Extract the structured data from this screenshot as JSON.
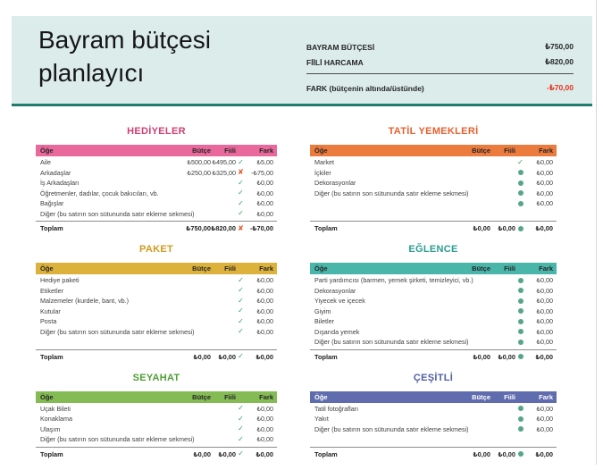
{
  "header": {
    "title_line1": "Bayram bütçesi",
    "title_line2": "planlayıcı",
    "summary": [
      {
        "label": "BAYRAM BÜTÇESİ",
        "value": "₺750,00",
        "color": "#262626"
      },
      {
        "label": "FİİLİ HARCAMA",
        "value": "₺820,00",
        "color": "#262626"
      },
      {
        "label": "FARK (bütçenin altında/üstünde)",
        "value": "-₺70,00",
        "color": "#e8301a"
      }
    ]
  },
  "columns": {
    "item": "Öğe",
    "budget": "Bütçe",
    "actual": "Fiili",
    "diff": "Fark"
  },
  "icons": {
    "check": "✓",
    "x": "✘",
    "dot": "●"
  },
  "colors": {
    "banner_bg": "#dbecea",
    "banner_border": "#1f7b6e",
    "check": "#2fa351",
    "x": "#e8542b",
    "dot": "#55a58b",
    "window_edge": "#d8d8d8"
  },
  "tables": [
    {
      "id": "hediyeler",
      "title": "HEDİYELER",
      "column": "left",
      "title_color": "#ce3f72",
      "bar_color": "#e9699c",
      "bar_text": "#262626",
      "rows": [
        {
          "label": "Aile",
          "budget": "₺500,00",
          "actual": "₺495,00",
          "icon": "check",
          "diff": "₺5,00"
        },
        {
          "label": "Arkadaşlar",
          "budget": "₺250,00",
          "actual": "₺325,00",
          "icon": "x",
          "diff": "-₺75,00"
        },
        {
          "label": "İş Arkadaşları",
          "budget": "",
          "actual": "",
          "icon": "check",
          "diff": "₺0,00"
        },
        {
          "label": "Öğretmenler, dadılar, çocuk bakıcıları, vb.",
          "budget": "",
          "actual": "",
          "icon": "check",
          "diff": "₺0,00"
        },
        {
          "label": "Bağışlar",
          "budget": "",
          "actual": "",
          "icon": "check",
          "diff": "₺0,00"
        },
        {
          "label": "Diğer (bu satırın son sütununda satır ekleme sekmesi)",
          "budget": "",
          "actual": "",
          "icon": "check",
          "diff": "₺0,00"
        }
      ],
      "total": {
        "label": "Toplam",
        "budget": "₺750,00",
        "actual": "₺820,00",
        "icon": "x",
        "diff": "-₺70,00"
      }
    },
    {
      "id": "tatil-yemekleri",
      "title": "TATİL YEMEKLERİ",
      "column": "right",
      "title_color": "#e5602f",
      "bar_color": "#ec7b3e",
      "bar_text": "#262626",
      "rows": [
        {
          "label": "Market",
          "budget": "",
          "actual": "",
          "icon": "check",
          "diff": "₺0,00"
        },
        {
          "label": "İçkiler",
          "budget": "",
          "actual": "",
          "icon": "dot",
          "diff": "₺0,00"
        },
        {
          "label": "Dekorasyonlar",
          "budget": "",
          "actual": "",
          "icon": "dot",
          "diff": "₺0,00"
        },
        {
          "label": "Diğer (bu satırın son sütununda satır ekleme sekmesi)",
          "budget": "",
          "actual": "",
          "icon": "dot",
          "diff": "₺0,00"
        },
        {
          "label": "",
          "budget": "",
          "actual": "",
          "icon": "dot",
          "diff": "₺0,00"
        },
        {
          "label": "",
          "budget": "",
          "actual": "",
          "icon": "none",
          "diff": ""
        }
      ],
      "total": {
        "label": "Toplam",
        "budget": "₺0,00",
        "actual": "₺0,00",
        "icon": "dot",
        "diff": "₺0,00"
      }
    },
    {
      "id": "paket",
      "title": "PAKET",
      "column": "left",
      "title_color": "#cf9a1d",
      "bar_color": "#ddb23c",
      "bar_text": "#262626",
      "rows": [
        {
          "label": "Hediye paketi",
          "budget": "",
          "actual": "",
          "icon": "check",
          "diff": "₺0,00"
        },
        {
          "label": "Etiketler",
          "budget": "",
          "actual": "",
          "icon": "check",
          "diff": "₺0,00"
        },
        {
          "label": "Malzemeler (kurdele, bant, vb.)",
          "budget": "",
          "actual": "",
          "icon": "check",
          "diff": "₺0,00"
        },
        {
          "label": "Kutular",
          "budget": "",
          "actual": "",
          "icon": "check",
          "diff": "₺0,00"
        },
        {
          "label": "Posta",
          "budget": "",
          "actual": "",
          "icon": "check",
          "diff": "₺0,00"
        },
        {
          "label": "Diğer (bu satırın son sütununda satır ekleme sekmesi)",
          "budget": "",
          "actual": "",
          "icon": "check",
          "diff": "₺0,00"
        },
        {
          "label": "",
          "budget": "",
          "actual": "",
          "icon": "none",
          "diff": ""
        }
      ],
      "total": {
        "label": "Toplam",
        "budget": "₺0,00",
        "actual": "₺0,00",
        "icon": "check",
        "diff": "₺0,00"
      }
    },
    {
      "id": "eglence",
      "title": "EĞLENCE",
      "column": "right",
      "title_color": "#2a9c90",
      "bar_color": "#4ab5a9",
      "bar_text": "#262626",
      "rows": [
        {
          "label": "Parti yardımcısı (barmen, yemek şirketi, temizleyici, vb.)",
          "budget": "",
          "actual": "",
          "icon": "dot",
          "diff": "₺0,00"
        },
        {
          "label": "Dekorasyonlar",
          "budget": "",
          "actual": "",
          "icon": "dot",
          "diff": "₺0,00"
        },
        {
          "label": "Yiyecek ve içecek",
          "budget": "",
          "actual": "",
          "icon": "dot",
          "diff": "₺0,00"
        },
        {
          "label": "Giyim",
          "budget": "",
          "actual": "",
          "icon": "dot",
          "diff": "₺0,00"
        },
        {
          "label": "Biletler",
          "budget": "",
          "actual": "",
          "icon": "dot",
          "diff": "₺0,00"
        },
        {
          "label": "Dışarıda yemek",
          "budget": "",
          "actual": "",
          "icon": "dot",
          "diff": "₺0,00"
        },
        {
          "label": "Diğer (bu satırın son sütununda satır ekleme sekmesi)",
          "budget": "",
          "actual": "",
          "icon": "dot",
          "diff": "₺0,00"
        }
      ],
      "total": {
        "label": "Toplam",
        "budget": "₺0,00",
        "actual": "₺0,00",
        "icon": "dot",
        "diff": "₺0,00"
      }
    },
    {
      "id": "seyahat",
      "title": "SEYAHAT",
      "column": "left",
      "title_color": "#4f9e36",
      "bar_color": "#84bb55",
      "bar_text": "#262626",
      "rows": [
        {
          "label": "Uçak Bileti",
          "budget": "",
          "actual": "",
          "icon": "check",
          "diff": "₺0,00"
        },
        {
          "label": "Konaklama",
          "budget": "",
          "actual": "",
          "icon": "check",
          "diff": "₺0,00"
        },
        {
          "label": "Ulaşım",
          "budget": "",
          "actual": "",
          "icon": "check",
          "diff": "₺0,00"
        },
        {
          "label": "Diğer (bu satırın son sütununda satır ekleme sekmesi)",
          "budget": "",
          "actual": "",
          "icon": "check",
          "diff": "₺0,00"
        }
      ],
      "total": {
        "label": "Toplam",
        "budget": "₺0,00",
        "actual": "₺0,00",
        "icon": "check",
        "diff": "₺0,00"
      }
    },
    {
      "id": "cesitli",
      "title": "ÇEŞİTLİ",
      "column": "right",
      "title_color": "#515fa5",
      "bar_color": "#5f6cae",
      "bar_text": "#ffffff",
      "rows": [
        {
          "label": "Tatil fotoğrafları",
          "budget": "",
          "actual": "",
          "icon": "dot",
          "diff": "₺0,00"
        },
        {
          "label": "Yakıt",
          "budget": "",
          "actual": "",
          "icon": "dot",
          "diff": "₺0,00"
        },
        {
          "label": "Diğer (bu satırın son sütununda satır ekleme sekmesi)",
          "budget": "",
          "actual": "",
          "icon": "dot",
          "diff": "₺0,00"
        },
        {
          "label": "",
          "budget": "",
          "actual": "",
          "icon": "none",
          "diff": ""
        }
      ],
      "total": {
        "label": "Toplam",
        "budget": "₺0,00",
        "actual": "₺0,00",
        "icon": "dot",
        "diff": "₺0,00"
      }
    }
  ]
}
